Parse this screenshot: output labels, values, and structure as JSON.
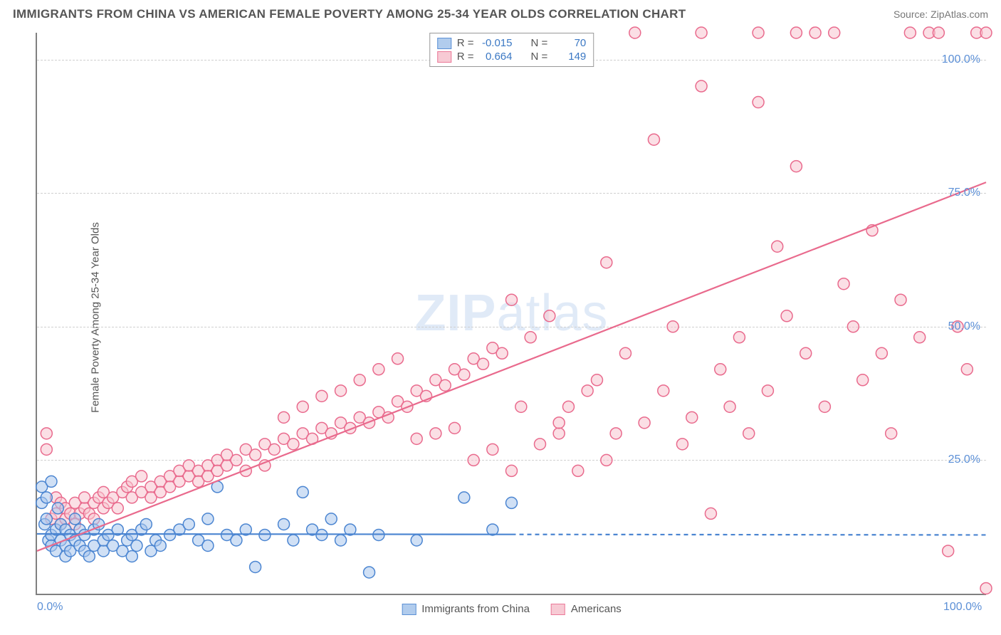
{
  "header": {
    "title": "IMMIGRANTS FROM CHINA VS AMERICAN FEMALE POVERTY AMONG 25-34 YEAR OLDS CORRELATION CHART",
    "source_label": "Source: ",
    "source_value": "ZipAtlas.com"
  },
  "ylabel": "Female Poverty Among 25-34 Year Olds",
  "watermark": {
    "strong": "ZIP",
    "light": "atlas"
  },
  "chart": {
    "type": "scatter",
    "xlim": [
      0,
      100
    ],
    "ylim": [
      0,
      105
    ],
    "ytick_labels": [
      "25.0%",
      "50.0%",
      "75.0%",
      "100.0%"
    ],
    "ytick_values": [
      25,
      50,
      75,
      100
    ],
    "xtick_labels": [
      "0.0%",
      "100.0%"
    ],
    "xtick_values": [
      0,
      100
    ],
    "grid_color": "#d0d0d0",
    "background_color": "#ffffff",
    "marker_radius": 8,
    "marker_stroke_width": 1.5,
    "series": {
      "blue": {
        "label": "Immigrants from China",
        "fill": "#a9c7ec",
        "stroke": "#4b85d1",
        "fill_opacity": 0.55,
        "R": "-0.015",
        "N": "70",
        "trend": {
          "y_at_x0": 11.2,
          "y_at_x100": 11.0,
          "solid_until_x": 50,
          "dash": "6 5",
          "width": 2.2
        },
        "points": [
          [
            0.5,
            20
          ],
          [
            0.5,
            17
          ],
          [
            0.8,
            13
          ],
          [
            1,
            18
          ],
          [
            1,
            14
          ],
          [
            1.2,
            10
          ],
          [
            1.5,
            21
          ],
          [
            1.5,
            11
          ],
          [
            1.5,
            9
          ],
          [
            2,
            12
          ],
          [
            2,
            8
          ],
          [
            2.2,
            16
          ],
          [
            2.5,
            10
          ],
          [
            2.5,
            13
          ],
          [
            3,
            9
          ],
          [
            3,
            12
          ],
          [
            3,
            7
          ],
          [
            3.5,
            11
          ],
          [
            3.5,
            8
          ],
          [
            4,
            14
          ],
          [
            4,
            10
          ],
          [
            4.5,
            9
          ],
          [
            4.5,
            12
          ],
          [
            5,
            8
          ],
          [
            5,
            11
          ],
          [
            5.5,
            7
          ],
          [
            6,
            9
          ],
          [
            6,
            12
          ],
          [
            6.5,
            13
          ],
          [
            7,
            8
          ],
          [
            7,
            10
          ],
          [
            7.5,
            11
          ],
          [
            8,
            9
          ],
          [
            8.5,
            12
          ],
          [
            9,
            8
          ],
          [
            9.5,
            10
          ],
          [
            10,
            11
          ],
          [
            10,
            7
          ],
          [
            10.5,
            9
          ],
          [
            11,
            12
          ],
          [
            11.5,
            13
          ],
          [
            12,
            8
          ],
          [
            12.5,
            10
          ],
          [
            13,
            9
          ],
          [
            14,
            11
          ],
          [
            15,
            12
          ],
          [
            16,
            13
          ],
          [
            17,
            10
          ],
          [
            18,
            9
          ],
          [
            18,
            14
          ],
          [
            19,
            20
          ],
          [
            20,
            11
          ],
          [
            21,
            10
          ],
          [
            22,
            12
          ],
          [
            23,
            5
          ],
          [
            24,
            11
          ],
          [
            26,
            13
          ],
          [
            27,
            10
          ],
          [
            28,
            19
          ],
          [
            29,
            12
          ],
          [
            30,
            11
          ],
          [
            31,
            14
          ],
          [
            32,
            10
          ],
          [
            33,
            12
          ],
          [
            35,
            4
          ],
          [
            36,
            11
          ],
          [
            40,
            10
          ],
          [
            45,
            18
          ],
          [
            48,
            12
          ],
          [
            50,
            17
          ]
        ]
      },
      "pink": {
        "label": "Americans",
        "fill": "#f7c5d0",
        "stroke": "#e96a8d",
        "fill_opacity": 0.55,
        "R": "0.664",
        "N": "149",
        "trend": {
          "y_at_x0": 8,
          "y_at_x100": 77,
          "solid_until_x": 100,
          "width": 2.2
        },
        "points": [
          [
            1,
            27
          ],
          [
            1,
            30
          ],
          [
            1.5,
            14
          ],
          [
            2,
            15
          ],
          [
            2,
            18
          ],
          [
            2.5,
            13
          ],
          [
            2.5,
            17
          ],
          [
            3,
            14
          ],
          [
            3,
            16
          ],
          [
            3.5,
            15
          ],
          [
            4,
            17
          ],
          [
            4,
            13
          ],
          [
            4.5,
            15
          ],
          [
            5,
            16
          ],
          [
            5,
            18
          ],
          [
            5.5,
            15
          ],
          [
            6,
            17
          ],
          [
            6,
            14
          ],
          [
            6.5,
            18
          ],
          [
            7,
            16
          ],
          [
            7,
            19
          ],
          [
            7.5,
            17
          ],
          [
            8,
            18
          ],
          [
            8.5,
            16
          ],
          [
            9,
            19
          ],
          [
            9.5,
            20
          ],
          [
            10,
            18
          ],
          [
            10,
            21
          ],
          [
            11,
            19
          ],
          [
            11,
            22
          ],
          [
            12,
            20
          ],
          [
            12,
            18
          ],
          [
            13,
            21
          ],
          [
            13,
            19
          ],
          [
            14,
            22
          ],
          [
            14,
            20
          ],
          [
            15,
            21
          ],
          [
            15,
            23
          ],
          [
            16,
            22
          ],
          [
            16,
            24
          ],
          [
            17,
            23
          ],
          [
            17,
            21
          ],
          [
            18,
            24
          ],
          [
            18,
            22
          ],
          [
            19,
            25
          ],
          [
            19,
            23
          ],
          [
            20,
            24
          ],
          [
            20,
            26
          ],
          [
            21,
            25
          ],
          [
            22,
            27
          ],
          [
            22,
            23
          ],
          [
            23,
            26
          ],
          [
            24,
            28
          ],
          [
            24,
            24
          ],
          [
            25,
            27
          ],
          [
            26,
            29
          ],
          [
            26,
            33
          ],
          [
            27,
            28
          ],
          [
            28,
            30
          ],
          [
            28,
            35
          ],
          [
            29,
            29
          ],
          [
            30,
            31
          ],
          [
            30,
            37
          ],
          [
            31,
            30
          ],
          [
            32,
            32
          ],
          [
            32,
            38
          ],
          [
            33,
            31
          ],
          [
            34,
            33
          ],
          [
            34,
            40
          ],
          [
            35,
            32
          ],
          [
            36,
            34
          ],
          [
            36,
            42
          ],
          [
            37,
            33
          ],
          [
            38,
            36
          ],
          [
            38,
            44
          ],
          [
            39,
            35
          ],
          [
            40,
            38
          ],
          [
            40,
            29
          ],
          [
            41,
            37
          ],
          [
            42,
            40
          ],
          [
            42,
            30
          ],
          [
            43,
            39
          ],
          [
            44,
            42
          ],
          [
            44,
            31
          ],
          [
            45,
            41
          ],
          [
            46,
            44
          ],
          [
            46,
            25
          ],
          [
            47,
            43
          ],
          [
            48,
            46
          ],
          [
            48,
            27
          ],
          [
            49,
            45
          ],
          [
            50,
            55
          ],
          [
            50,
            23
          ],
          [
            51,
            35
          ],
          [
            52,
            48
          ],
          [
            53,
            28
          ],
          [
            54,
            52
          ],
          [
            55,
            30
          ],
          [
            55,
            32
          ],
          [
            56,
            35
          ],
          [
            57,
            23
          ],
          [
            58,
            38
          ],
          [
            59,
            40
          ],
          [
            60,
            25
          ],
          [
            60,
            62
          ],
          [
            61,
            30
          ],
          [
            62,
            45
          ],
          [
            63,
            105
          ],
          [
            64,
            32
          ],
          [
            65,
            85
          ],
          [
            66,
            38
          ],
          [
            67,
            50
          ],
          [
            68,
            28
          ],
          [
            69,
            33
          ],
          [
            70,
            95
          ],
          [
            70,
            105
          ],
          [
            71,
            15
          ],
          [
            72,
            42
          ],
          [
            73,
            35
          ],
          [
            74,
            48
          ],
          [
            75,
            30
          ],
          [
            76,
            92
          ],
          [
            76,
            105
          ],
          [
            77,
            38
          ],
          [
            78,
            65
          ],
          [
            79,
            52
          ],
          [
            80,
            80
          ],
          [
            80,
            105
          ],
          [
            81,
            45
          ],
          [
            82,
            105
          ],
          [
            83,
            35
          ],
          [
            84,
            105
          ],
          [
            85,
            58
          ],
          [
            86,
            50
          ],
          [
            87,
            40
          ],
          [
            88,
            68
          ],
          [
            89,
            45
          ],
          [
            90,
            30
          ],
          [
            91,
            55
          ],
          [
            92,
            105
          ],
          [
            93,
            48
          ],
          [
            94,
            105
          ],
          [
            95,
            105
          ],
          [
            96,
            8
          ],
          [
            97,
            50
          ],
          [
            98,
            42
          ],
          [
            99,
            105
          ],
          [
            100,
            105
          ],
          [
            100,
            1
          ]
        ]
      }
    }
  },
  "stat_box": {
    "R_label": "R =",
    "N_label": "N ="
  }
}
